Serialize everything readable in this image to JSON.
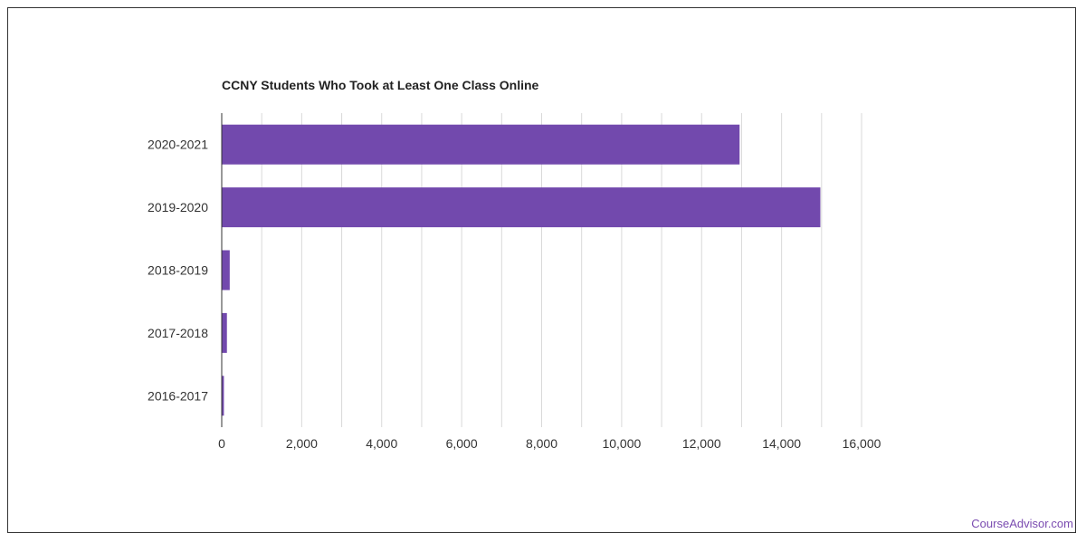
{
  "chart_data": {
    "type": "bar",
    "orientation": "horizontal",
    "title": "CCNY Students Who Took at Least One Class Online",
    "categories": [
      "2020-2021",
      "2019-2020",
      "2018-2019",
      "2017-2018",
      "2016-2017"
    ],
    "values": [
      12950,
      14970,
      200,
      130,
      55
    ],
    "xlim": [
      0,
      16000
    ],
    "xticks": [
      0,
      2000,
      4000,
      6000,
      8000,
      10000,
      12000,
      14000,
      16000
    ],
    "xtick_labels": [
      "0",
      "2,000",
      "4,000",
      "6,000",
      "8,000",
      "10,000",
      "12,000",
      "14,000",
      "16,000"
    ],
    "xlabel": "",
    "ylabel": "",
    "grid": true,
    "bar_color": "#7249ad"
  },
  "credit": "CourseAdvisor.com"
}
